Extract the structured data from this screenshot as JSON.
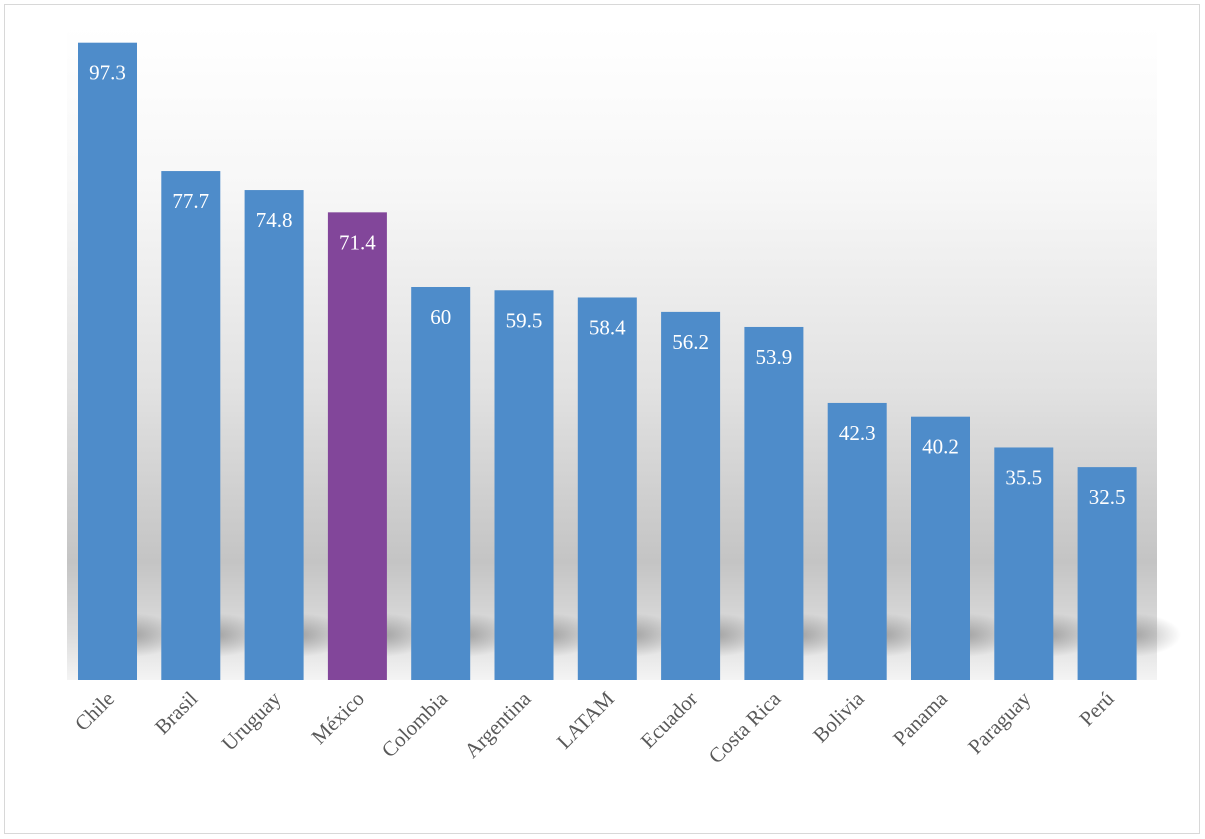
{
  "chart_data": {
    "type": "bar",
    "title": "",
    "xlabel": "",
    "ylabel": "",
    "categories": [
      "Chile",
      "Brasil",
      "Uruguay",
      "México",
      "Colombia",
      "Argentina",
      "LATAM",
      "Ecuador",
      "Costa Rica",
      "Bolivia",
      "Panama",
      "Paraguay",
      "Perú"
    ],
    "values": [
      97.3,
      77.7,
      74.8,
      71.4,
      60,
      59.5,
      58.4,
      56.2,
      53.9,
      42.3,
      40.2,
      35.5,
      32.5
    ],
    "ylim": [
      0,
      100
    ],
    "grid": false,
    "legend": "none",
    "bar_color": "#4e8cca",
    "highlight": {
      "category": "México",
      "color": "#82469a"
    },
    "data_label_color": "#ffffff",
    "category_label_color": "#595959"
  }
}
